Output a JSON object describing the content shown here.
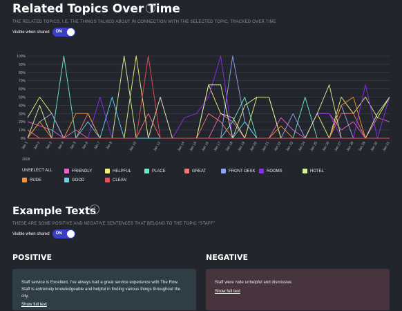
{
  "header": {
    "title": "Related Topics Over Time",
    "info_icon": "info-icon",
    "subtitle": "THE RELATED TOPICS, I.E. THE THINGS TALKED ABOUT IN CONNECTION WITH THE SELECTED TOPIC, TRACKED OVER TIME",
    "visible_label": "Visible when shared",
    "toggle_label": "ON"
  },
  "chart_data": {
    "type": "line",
    "x": [
      "Jan 1",
      "Jan 2",
      "Jan 3",
      "Jan 4",
      "Jan 5",
      "Jan 6",
      "Jan 7",
      "Jan 8",
      "Jan 9",
      "Jan 10",
      "Jan 11",
      "Jan 12",
      "Jan 13",
      "Jan 14",
      "Jan 15",
      "Jan 16",
      "Jan 17",
      "Jan 18",
      "Jan 19",
      "Jan 20",
      "Jan 21",
      "Jan 22",
      "Jan 23",
      "Jan 24",
      "Jan 25",
      "Jan 26",
      "Jan 27",
      "Jan 28",
      "Jan 29",
      "Jan 30",
      "Jan 31"
    ],
    "x_tick_labels": [
      "Jan 1",
      "Jan 2",
      "Jan 3",
      "Jan 4",
      "Jan 5",
      "Jan 6",
      "Jan 7",
      "Jan 8",
      "Jan 10",
      "Jan 12",
      "Jan 14",
      "Jan 15",
      "Jan 16",
      "Jan 17",
      "Jan 18",
      "Jan 19",
      "Jan 20",
      "Jan 21",
      "Jan 22",
      "Jan 23",
      "Jan 24",
      "Jan 25",
      "Jan 26",
      "Jan 27",
      "Jan 28",
      "Jan 29",
      "Jan 30",
      "Jan 31"
    ],
    "year_label": "2018",
    "y_ticks": [
      "0%",
      "10%",
      "20%",
      "30%",
      "40%",
      "50%",
      "60%",
      "70%",
      "80%",
      "90%",
      "100%"
    ],
    "ylim": [
      0,
      100
    ],
    "grid": true,
    "series": [
      {
        "name": "FRIENDLY",
        "color": "#e860c8",
        "values": [
          20,
          15,
          10,
          0,
          10,
          0,
          0,
          0,
          0,
          0,
          0,
          0,
          0,
          0,
          0,
          0,
          30,
          20,
          0,
          0,
          0,
          25,
          10,
          0,
          30,
          30,
          10,
          20,
          0,
          25,
          20
        ]
      },
      {
        "name": "HELPFUL",
        "color": "#eef079",
        "values": [
          25,
          50,
          30,
          0,
          0,
          0,
          0,
          0,
          0,
          100,
          0,
          0,
          0,
          0,
          0,
          65,
          30,
          25,
          0,
          50,
          50,
          0,
          0,
          0,
          30,
          0,
          50,
          30,
          50,
          25,
          50
        ]
      },
      {
        "name": "PLACE",
        "color": "#6ee8c6",
        "values": [
          0,
          0,
          0,
          100,
          0,
          0,
          0,
          0,
          0,
          0,
          0,
          0,
          0,
          0,
          0,
          0,
          0,
          20,
          50,
          0,
          0,
          0,
          0,
          50,
          0,
          0,
          0,
          0,
          0,
          0,
          0
        ]
      },
      {
        "name": "GREAT",
        "color": "#f07575",
        "values": [
          10,
          0,
          0,
          0,
          0,
          30,
          0,
          0,
          0,
          0,
          30,
          0,
          0,
          0,
          0,
          30,
          20,
          0,
          0,
          0,
          0,
          0,
          0,
          0,
          0,
          0,
          30,
          30,
          0,
          0,
          0
        ]
      },
      {
        "name": "FRONT DESK",
        "color": "#8fa3ea",
        "values": [
          0,
          20,
          30,
          0,
          0,
          0,
          0,
          0,
          0,
          0,
          0,
          0,
          0,
          0,
          0,
          0,
          0,
          100,
          20,
          0,
          0,
          0,
          30,
          0,
          0,
          0,
          40,
          0,
          0,
          0,
          0
        ]
      },
      {
        "name": "ROOMS",
        "color": "#8a2df0",
        "values": [
          0,
          0,
          0,
          0,
          0,
          0,
          50,
          0,
          0,
          0,
          0,
          50,
          0,
          25,
          30,
          50,
          100,
          0,
          0,
          0,
          0,
          0,
          0,
          0,
          30,
          30,
          0,
          0,
          65,
          0,
          50
        ]
      },
      {
        "name": "HOTEL",
        "color": "#d4f09a",
        "values": [
          0,
          40,
          0,
          0,
          0,
          0,
          0,
          0,
          100,
          0,
          0,
          50,
          0,
          0,
          0,
          65,
          65,
          0,
          40,
          50,
          50,
          0,
          0,
          0,
          30,
          65,
          0,
          0,
          0,
          30,
          50
        ]
      },
      {
        "name": "RUDE",
        "color": "#f0933a",
        "values": [
          0,
          20,
          0,
          0,
          30,
          30,
          0,
          0,
          0,
          0,
          0,
          0,
          0,
          0,
          0,
          0,
          0,
          0,
          0,
          0,
          0,
          15,
          0,
          0,
          0,
          0,
          40,
          50,
          0,
          0,
          0
        ]
      },
      {
        "name": "GOOD",
        "color": "#5ed6ec",
        "values": [
          0,
          0,
          0,
          0,
          0,
          20,
          0,
          50,
          0,
          0,
          0,
          0,
          0,
          0,
          0,
          0,
          0,
          0,
          20,
          0,
          0,
          0,
          0,
          0,
          0,
          0,
          0,
          0,
          0,
          0,
          0
        ]
      },
      {
        "name": "CLEAN",
        "color": "#ee4b56",
        "values": [
          0,
          0,
          0,
          0,
          0,
          0,
          0,
          0,
          0,
          0,
          100,
          0,
          0,
          0,
          0,
          0,
          0,
          0,
          0,
          0,
          0,
          0,
          0,
          0,
          0,
          0,
          0,
          0,
          0,
          0,
          0
        ]
      }
    ]
  },
  "legend": {
    "unselect_all": "UNSELECT ALL",
    "items": [
      {
        "label": "FRIENDLY",
        "color": "#e860c8"
      },
      {
        "label": "HELPFUL",
        "color": "#eef079"
      },
      {
        "label": "PLACE",
        "color": "#6ee8c6"
      },
      {
        "label": "GREAT",
        "color": "#f07575"
      },
      {
        "label": "FRONT DESK",
        "color": "#8fa3ea"
      },
      {
        "label": "ROOMS",
        "color": "#8a2df0"
      },
      {
        "label": "HOTEL",
        "color": "#d4f09a"
      },
      {
        "label": "RUDE",
        "color": "#f0933a"
      },
      {
        "label": "GOOD",
        "color": "#5ed6ec"
      },
      {
        "label": "CLEAN",
        "color": "#ee4b56"
      }
    ]
  },
  "examples": {
    "title": "Example Texts",
    "subtitle": "THESE ARE SOME POSITIVE AND NEGATIVE SENTENCES THAT BELONG TO THE TOPIC \"STAFF\"",
    "visible_label": "Visible when shared",
    "toggle_label": "ON",
    "positive": {
      "heading": "POSITIVE",
      "text": "Staff service is Excellent. I've always had a great service experience with The Row. Staff is extremely knowledgeable and helpful in finding various things throughout the city.",
      "link": "Show full text",
      "bg": "#2f3e44"
    },
    "negative": {
      "heading": "NEGATIVE",
      "text": "Staff were rude unhelpful and dismissive.",
      "link": "Show full text",
      "bg": "#47343d"
    }
  }
}
